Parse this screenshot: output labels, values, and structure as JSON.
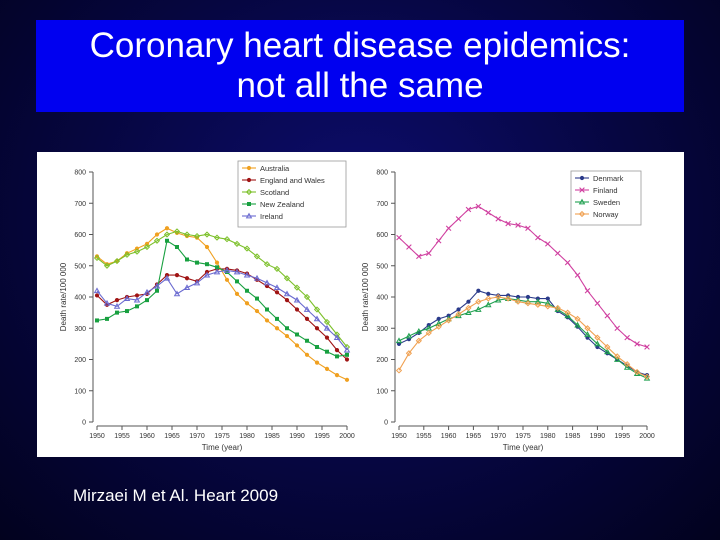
{
  "slide": {
    "title_line1": "Coronary heart disease epidemics:",
    "title_line2": "not all the same",
    "citation": "Mirzaei M et Al. Heart 2009"
  },
  "colors": {
    "background": "#060640",
    "title_box": "#0000f0",
    "title_text": "#ffffff"
  },
  "chart_data": [
    {
      "type": "line",
      "xlabel": "Time (year)",
      "ylabel": "Death rate/100 000",
      "xlim": [
        1950,
        2000
      ],
      "ylim": [
        0,
        800
      ],
      "xticks": [
        "1950",
        "1955",
        "1960",
        "1965",
        "1970",
        "1975",
        "1980",
        "1985",
        "1990",
        "1995",
        "2000"
      ],
      "yticks": [
        "0",
        "100",
        "200",
        "300",
        "400",
        "500",
        "600",
        "700",
        "800"
      ],
      "legend_position": "top-right",
      "series": [
        {
          "name": "Australia",
          "color": "#f0a020",
          "marker": "dot",
          "x": [
            1950,
            1952,
            1954,
            1956,
            1958,
            1960,
            1962,
            1964,
            1966,
            1968,
            1970,
            1972,
            1974,
            1976,
            1978,
            1980,
            1982,
            1984,
            1986,
            1988,
            1990,
            1992,
            1994,
            1996,
            1998,
            2000
          ],
          "y": [
            530,
            505,
            515,
            540,
            555,
            570,
            600,
            620,
            605,
            595,
            590,
            560,
            510,
            455,
            410,
            380,
            355,
            325,
            300,
            275,
            245,
            215,
            190,
            170,
            150,
            135
          ]
        },
        {
          "name": "England and Wales",
          "color": "#a01414",
          "marker": "dot",
          "x": [
            1950,
            1952,
            1954,
            1956,
            1958,
            1960,
            1962,
            1964,
            1966,
            1968,
            1970,
            1972,
            1974,
            1976,
            1978,
            1980,
            1982,
            1984,
            1986,
            1988,
            1990,
            1992,
            1994,
            1996,
            1998,
            2000
          ],
          "y": [
            405,
            375,
            390,
            400,
            405,
            410,
            440,
            470,
            470,
            460,
            450,
            480,
            490,
            490,
            485,
            475,
            455,
            435,
            415,
            390,
            360,
            330,
            300,
            270,
            230,
            200
          ]
        },
        {
          "name": "Scotland",
          "color": "#7cc02a",
          "marker": "diamond",
          "x": [
            1950,
            1952,
            1954,
            1956,
            1958,
            1960,
            1962,
            1964,
            1966,
            1968,
            1970,
            1972,
            1974,
            1976,
            1978,
            1980,
            1982,
            1984,
            1986,
            1988,
            1990,
            1992,
            1994,
            1996,
            1998,
            2000
          ],
          "y": [
            525,
            500,
            515,
            535,
            545,
            560,
            580,
            600,
            610,
            600,
            595,
            600,
            590,
            585,
            570,
            555,
            530,
            505,
            490,
            460,
            430,
            400,
            360,
            320,
            280,
            240
          ]
        },
        {
          "name": "New Zealand",
          "color": "#18a040",
          "marker": "square",
          "x": [
            1950,
            1952,
            1954,
            1956,
            1958,
            1960,
            1962,
            1964,
            1966,
            1968,
            1970,
            1972,
            1974,
            1976,
            1978,
            1980,
            1982,
            1984,
            1986,
            1988,
            1990,
            1992,
            1994,
            1996,
            1998,
            2000
          ],
          "y": [
            325,
            330,
            350,
            355,
            370,
            390,
            420,
            580,
            560,
            520,
            510,
            505,
            495,
            480,
            450,
            420,
            395,
            360,
            330,
            300,
            280,
            260,
            240,
            225,
            210,
            215
          ]
        },
        {
          "name": "Ireland",
          "color": "#6a6ad0",
          "marker": "triangle",
          "x": [
            1950,
            1952,
            1954,
            1956,
            1958,
            1960,
            1962,
            1964,
            1966,
            1968,
            1970,
            1972,
            1974,
            1976,
            1978,
            1980,
            1982,
            1984,
            1986,
            1988,
            1990,
            1992,
            1994,
            1996,
            1998,
            2000
          ],
          "y": [
            420,
            380,
            370,
            395,
            390,
            415,
            435,
            460,
            410,
            430,
            445,
            470,
            480,
            485,
            480,
            470,
            460,
            445,
            430,
            410,
            390,
            360,
            330,
            300,
            270,
            230
          ]
        }
      ]
    },
    {
      "type": "line",
      "xlabel": "Time (year)",
      "ylabel": "Death rate/100 000",
      "xlim": [
        1950,
        2000
      ],
      "ylim": [
        0,
        800
      ],
      "xticks": [
        "1950",
        "1955",
        "1960",
        "1965",
        "1970",
        "1975",
        "1980",
        "1985",
        "1990",
        "1995",
        "2000"
      ],
      "yticks": [
        "0",
        "100",
        "200",
        "300",
        "400",
        "500",
        "600",
        "700",
        "800"
      ],
      "legend_position": "top-right",
      "series": [
        {
          "name": "Denmark",
          "color": "#2a3a8a",
          "marker": "dot",
          "x": [
            1950,
            1952,
            1954,
            1956,
            1958,
            1960,
            1962,
            1964,
            1966,
            1968,
            1970,
            1972,
            1974,
            1976,
            1978,
            1980,
            1982,
            1984,
            1986,
            1988,
            1990,
            1992,
            1994,
            1996,
            1998,
            2000
          ],
          "y": [
            250,
            265,
            285,
            310,
            330,
            340,
            360,
            385,
            420,
            410,
            405,
            405,
            400,
            400,
            395,
            395,
            355,
            335,
            305,
            270,
            240,
            220,
            200,
            180,
            160,
            150
          ]
        },
        {
          "name": "Finland",
          "color": "#d040a0",
          "marker": "cross",
          "x": [
            1950,
            1952,
            1954,
            1956,
            1958,
            1960,
            1962,
            1964,
            1966,
            1968,
            1970,
            1972,
            1974,
            1976,
            1978,
            1980,
            1982,
            1984,
            1986,
            1988,
            1990,
            1992,
            1994,
            1996,
            1998,
            2000
          ],
          "y": [
            590,
            560,
            530,
            540,
            580,
            620,
            650,
            680,
            690,
            670,
            650,
            635,
            630,
            620,
            590,
            570,
            540,
            510,
            470,
            420,
            380,
            340,
            300,
            270,
            250,
            240
          ]
        },
        {
          "name": "Sweden",
          "color": "#20a050",
          "marker": "triangle",
          "x": [
            1950,
            1952,
            1954,
            1956,
            1958,
            1960,
            1962,
            1964,
            1966,
            1968,
            1970,
            1972,
            1974,
            1976,
            1978,
            1980,
            1982,
            1984,
            1986,
            1988,
            1990,
            1992,
            1994,
            1996,
            1998,
            2000
          ],
          "y": [
            260,
            275,
            290,
            300,
            315,
            330,
            340,
            350,
            360,
            375,
            390,
            395,
            390,
            385,
            385,
            380,
            360,
            340,
            310,
            280,
            250,
            225,
            200,
            175,
            155,
            140
          ]
        },
        {
          "name": "Norway",
          "color": "#f0a050",
          "marker": "diamond",
          "x": [
            1950,
            1952,
            1954,
            1956,
            1958,
            1960,
            1962,
            1964,
            1966,
            1968,
            1970,
            1972,
            1974,
            1976,
            1978,
            1980,
            1982,
            1984,
            1986,
            1988,
            1990,
            1992,
            1994,
            1996,
            1998,
            2000
          ],
          "y": [
            165,
            220,
            260,
            285,
            305,
            325,
            345,
            365,
            385,
            395,
            400,
            395,
            385,
            380,
            375,
            370,
            365,
            350,
            330,
            300,
            270,
            240,
            210,
            185,
            160,
            145
          ]
        }
      ]
    }
  ]
}
